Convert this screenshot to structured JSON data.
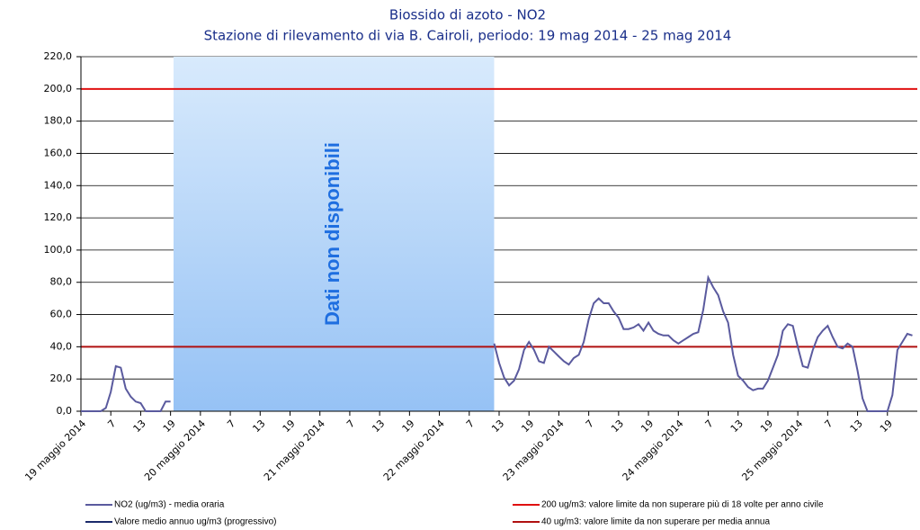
{
  "chart_data": {
    "type": "line",
    "title": "Biossido di azoto - NO2",
    "subtitle": "Stazione di rilevamento di via B. Cairoli, periodo: 19 mag 2014 - 25 mag 2014",
    "xlim": [
      0,
      168
    ],
    "ylim": [
      0,
      220
    ],
    "yticks": [
      {
        "value": 0,
        "label": "0,0"
      },
      {
        "value": 20,
        "label": "20,0"
      },
      {
        "value": 40,
        "label": "40,0"
      },
      {
        "value": 60,
        "label": "60,0"
      },
      {
        "value": 80,
        "label": "80,0"
      },
      {
        "value": 100,
        "label": "100,0"
      },
      {
        "value": 120,
        "label": "120,0"
      },
      {
        "value": 140,
        "label": "140,0"
      },
      {
        "value": 160,
        "label": "160,0"
      },
      {
        "value": 180,
        "label": "180,0"
      },
      {
        "value": 200,
        "label": "200,0"
      },
      {
        "value": 220,
        "label": "220,0"
      }
    ],
    "xticks": [
      {
        "value": 0,
        "label": "19 maggio 2014"
      },
      {
        "value": 6,
        "label": "7"
      },
      {
        "value": 12,
        "label": "13"
      },
      {
        "value": 18,
        "label": "19"
      },
      {
        "value": 24,
        "label": "20 maggio 2014"
      },
      {
        "value": 30,
        "label": "7"
      },
      {
        "value": 36,
        "label": "13"
      },
      {
        "value": 42,
        "label": "19"
      },
      {
        "value": 48,
        "label": "21 maggio 2014"
      },
      {
        "value": 54,
        "label": "7"
      },
      {
        "value": 60,
        "label": "13"
      },
      {
        "value": 66,
        "label": "19"
      },
      {
        "value": 72,
        "label": "22 maggio 2014"
      },
      {
        "value": 78,
        "label": "7"
      },
      {
        "value": 84,
        "label": "13"
      },
      {
        "value": 90,
        "label": "19"
      },
      {
        "value": 96,
        "label": "23 maggio 2014"
      },
      {
        "value": 102,
        "label": "7"
      },
      {
        "value": 108,
        "label": "13"
      },
      {
        "value": 114,
        "label": "19"
      },
      {
        "value": 120,
        "label": "24 maggio 2014"
      },
      {
        "value": 126,
        "label": "7"
      },
      {
        "value": 132,
        "label": "13"
      },
      {
        "value": 138,
        "label": "19"
      },
      {
        "value": 144,
        "label": "25 maggio 2014"
      },
      {
        "value": 150,
        "label": "7"
      },
      {
        "value": 156,
        "label": "13"
      },
      {
        "value": 162,
        "label": "19"
      }
    ],
    "grid": true,
    "x": [
      0,
      1,
      2,
      3,
      4,
      5,
      6,
      7,
      8,
      9,
      10,
      11,
      12,
      13,
      14,
      15,
      16,
      17,
      18,
      19,
      20,
      21,
      22,
      23,
      24,
      25,
      26,
      27,
      28,
      29,
      30,
      31,
      32,
      33,
      34,
      35,
      36,
      37,
      38,
      39,
      40,
      41,
      42,
      43,
      44,
      45,
      46,
      47,
      48,
      49,
      50,
      51,
      52,
      53,
      54,
      55,
      56,
      57,
      58,
      59,
      60,
      61,
      62,
      63,
      64,
      65,
      66,
      67,
      68,
      69,
      70,
      71,
      72,
      73,
      74,
      75,
      76,
      77,
      78,
      79,
      80,
      81,
      82,
      83,
      84,
      85,
      86,
      87,
      88,
      89,
      90,
      91,
      92,
      93,
      94,
      95,
      96,
      97,
      98,
      99,
      100,
      101,
      102,
      103,
      104,
      105,
      106,
      107,
      108,
      109,
      110,
      111,
      112,
      113,
      114,
      115,
      116,
      117,
      118,
      119,
      120,
      121,
      122,
      123,
      124,
      125,
      126,
      127,
      128,
      129,
      130,
      131,
      132,
      133,
      134,
      135,
      136,
      137,
      138,
      139,
      140,
      141,
      142,
      143,
      144,
      145,
      146,
      147,
      148,
      149,
      150,
      151,
      152,
      153,
      154,
      155,
      156,
      157,
      158,
      159,
      160,
      161,
      162,
      163,
      164,
      165,
      166,
      167
    ],
    "series": [
      {
        "name": "NO2 (ug/m3)  - media oraria",
        "color": "#5a5a9e",
        "values": [
          0,
          0,
          0,
          0,
          0,
          2,
          12,
          28,
          27,
          14,
          9,
          6,
          5,
          0,
          0,
          0,
          0,
          6,
          6,
          null,
          null,
          null,
          null,
          null,
          null,
          null,
          null,
          null,
          null,
          null,
          null,
          null,
          null,
          null,
          null,
          null,
          null,
          null,
          null,
          null,
          null,
          null,
          null,
          null,
          null,
          null,
          null,
          null,
          null,
          null,
          null,
          null,
          null,
          null,
          null,
          null,
          null,
          null,
          null,
          null,
          null,
          null,
          null,
          null,
          null,
          null,
          null,
          null,
          null,
          null,
          null,
          null,
          null,
          null,
          null,
          null,
          null,
          null,
          null,
          null,
          null,
          null,
          null,
          42,
          30,
          21,
          16,
          19,
          26,
          38,
          43,
          38,
          31,
          30,
          40,
          37,
          34,
          31,
          29,
          33,
          35,
          43,
          57,
          67,
          70,
          67,
          67,
          62,
          58,
          51,
          51,
          52,
          54,
          50,
          55,
          50,
          48,
          47,
          47,
          44,
          42,
          44,
          46,
          48,
          49,
          63,
          83,
          77,
          72,
          62,
          55,
          35,
          22,
          19,
          15,
          13,
          14,
          14,
          19,
          27,
          35,
          50,
          54,
          53,
          40,
          28,
          27,
          38,
          46,
          50,
          53,
          46,
          40,
          39,
          42,
          40,
          25,
          8,
          0,
          0,
          0,
          0,
          0,
          10,
          38,
          43,
          48,
          47
        ]
      }
    ],
    "extra_legend": [
      {
        "name": "Valore medio annuo ug/m3 (progressivo)",
        "color": "#1a2a6a"
      }
    ],
    "reference_lines": [
      {
        "name": "200 ug/m3: valore limite da non superare più di 18 volte per anno civile",
        "value": 200,
        "color": "#e01010"
      },
      {
        "name": "40 ug/m3: valore limite da non superare per media annua",
        "value": 40,
        "color": "#b01010"
      }
    ],
    "annotation": {
      "text": "Dati non disponibili",
      "x_range": [
        18.6,
        83
      ]
    }
  }
}
